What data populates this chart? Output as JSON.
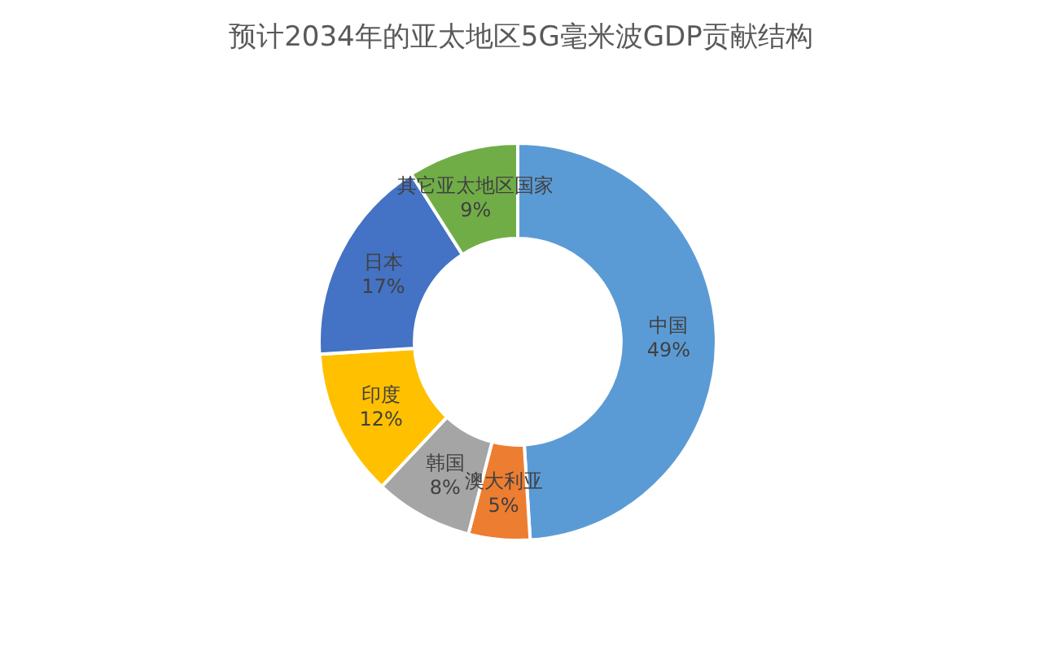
{
  "chart_data": {
    "type": "donut",
    "title": "预计2034年的亚太地区5G毫米波GDP贡献结构",
    "categories": [
      "中国",
      "澳大利亚",
      "韩国",
      "印度",
      "日本",
      "其它亚太地区国家"
    ],
    "values": [
      49,
      5,
      8,
      12,
      17,
      9
    ],
    "value_labels": [
      "49%",
      "5%",
      "8%",
      "12%",
      "17%",
      "9%"
    ],
    "colors": [
      "#5b9bd5",
      "#ed7d31",
      "#a5a5a5",
      "#ffc000",
      "#4472c4",
      "#70ad47"
    ],
    "legend": false
  }
}
